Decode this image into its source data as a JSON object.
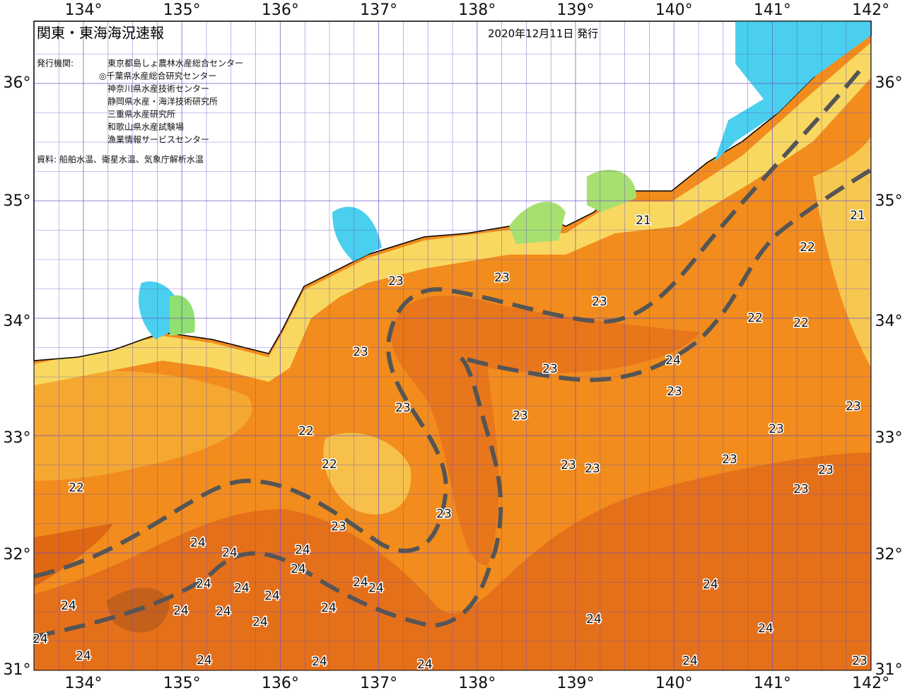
{
  "header": {
    "title": "関東・東海海況速報",
    "date": "2020年12月11日 発行"
  },
  "issuers": {
    "label": "発行機関:",
    "organizations": [
      "東京都島しょ農林水産総合センター",
      "◎千葉県水産総合研究センター",
      "神奈川県水産技術センター",
      "静岡県水産・海洋技術研究所",
      "三重県水産研究所",
      "和歌山県水産試験場",
      "漁業情報サービスセンター"
    ]
  },
  "source": "資料: 船舶水温、衛星水温、気象庁解析水温",
  "lon_labels": [
    "134°",
    "135°",
    "136°",
    "137°",
    "138°",
    "139°",
    "140°",
    "141°",
    "142°"
  ],
  "lat_labels": [
    "36°",
    "35°",
    "34°",
    "33°",
    "32°",
    "31°"
  ],
  "contour_labels": [
    23,
    23,
    23,
    21,
    22,
    21,
    22,
    22,
    23,
    24,
    23,
    23,
    23,
    23,
    23,
    22,
    23,
    22,
    23,
    23,
    23,
    23,
    22,
    23,
    23,
    23,
    24,
    24,
    24,
    24,
    24,
    24,
    24,
    24,
    24,
    24,
    24,
    24,
    24,
    24,
    24,
    24,
    24,
    24,
    24,
    24,
    24,
    24,
    23,
    24
  ]
}
